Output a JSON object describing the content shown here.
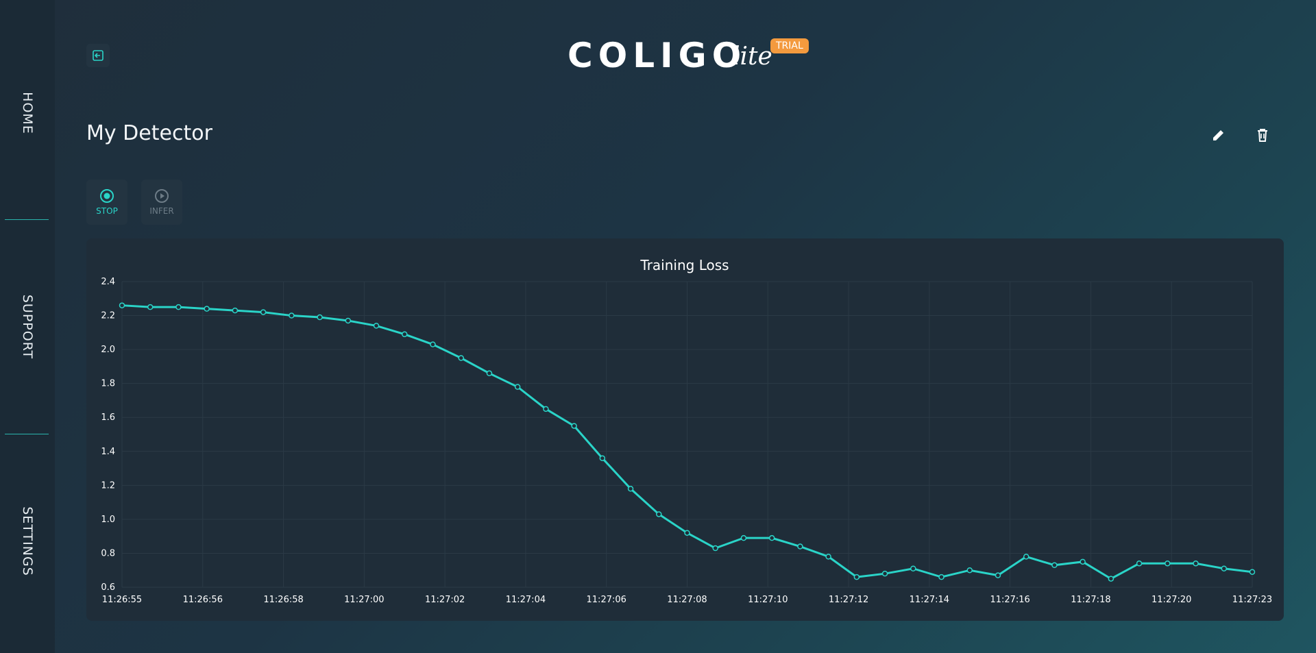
{
  "sidebar": {
    "items": [
      "HOME",
      "SUPPORT",
      "SETTINGS"
    ]
  },
  "header": {
    "logo": "COLIGO",
    "logo_suffix": "lite",
    "badge": "TRIAL"
  },
  "page": {
    "title": "My Detector"
  },
  "controls": [
    {
      "label": "STOP"
    },
    {
      "label": "INFER"
    }
  ],
  "chart_data": {
    "type": "line",
    "title": "Training Loss",
    "x": [
      0,
      0.7,
      1.4,
      2.1,
      2.8,
      3.5,
      4.2,
      4.9,
      5.6,
      6.3,
      7,
      7.7,
      8.4,
      9.1,
      9.8,
      10.5,
      11.2,
      11.9,
      12.6,
      13.3,
      14,
      14.7,
      15.4,
      16.1,
      16.8,
      17.5,
      18.2,
      18.9,
      19.6,
      20.3,
      21,
      21.7,
      22.4,
      23.1,
      23.8,
      24.5,
      25.2,
      25.9,
      26.6,
      27.3,
      28
    ],
    "series": [
      {
        "name": "Training Loss",
        "color": "#2ad4c8",
        "values": [
          2.26,
          2.25,
          2.25,
          2.24,
          2.23,
          2.22,
          2.2,
          2.19,
          2.17,
          2.14,
          2.09,
          2.03,
          1.95,
          1.86,
          1.78,
          1.65,
          1.55,
          1.36,
          1.18,
          1.03,
          0.92,
          0.83,
          0.89,
          0.89,
          0.84,
          0.78,
          0.66,
          0.68,
          0.71,
          0.66,
          0.7,
          0.67,
          0.78,
          0.73,
          0.75,
          0.65,
          0.74,
          0.74,
          0.74,
          0.71,
          0.69
        ]
      }
    ],
    "xlim": [
      0,
      28
    ],
    "xticks": [
      {
        "value": 0,
        "label": "11:26:55"
      },
      {
        "value": 2,
        "label": "11:26:56"
      },
      {
        "value": 4,
        "label": "11:26:58"
      },
      {
        "value": 6,
        "label": "11:27:00"
      },
      {
        "value": 8,
        "label": "11:27:02"
      },
      {
        "value": 10,
        "label": "11:27:04"
      },
      {
        "value": 12,
        "label": "11:27:06"
      },
      {
        "value": 14,
        "label": "11:27:08"
      },
      {
        "value": 16,
        "label": "11:27:10"
      },
      {
        "value": 18,
        "label": "11:27:12"
      },
      {
        "value": 20,
        "label": "11:27:14"
      },
      {
        "value": 22,
        "label": "11:27:16"
      },
      {
        "value": 24,
        "label": "11:27:18"
      },
      {
        "value": 26,
        "label": "11:27:20"
      },
      {
        "value": 28,
        "label": "11:27:23"
      }
    ],
    "ylim": [
      0.6,
      2.4
    ],
    "yticks": [
      0.6,
      0.8,
      {
        "value": 1,
        "label": "1.0"
      },
      1.2,
      1.4,
      1.6,
      1.8,
      {
        "value": 2,
        "label": "2.0"
      },
      2.2,
      2.4
    ],
    "grid": true
  }
}
